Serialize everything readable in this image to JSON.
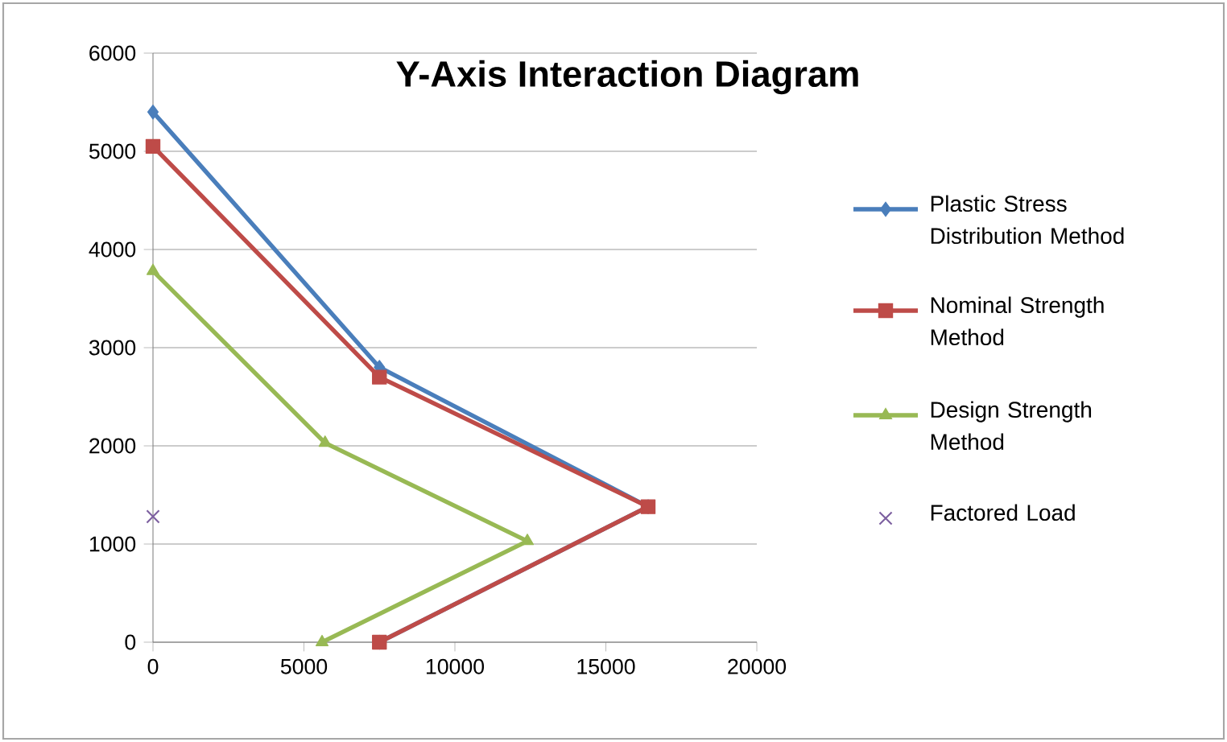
{
  "chart_data": {
    "type": "line",
    "title": "Y-Axis Interaction Diagram",
    "xlim": [
      0,
      20000
    ],
    "xticks": [
      0,
      5000,
      10000,
      15000,
      20000
    ],
    "ylim": [
      0,
      6000
    ],
    "yticks": [
      0,
      1000,
      2000,
      3000,
      4000,
      5000,
      6000
    ],
    "grid": "y",
    "legend": "right",
    "series": [
      {
        "name": "Plastic Stress Distribution Method",
        "color": "#4a7ebb",
        "marker": "diamond",
        "line_style": "solid",
        "x": [
          0,
          7500,
          16400,
          7500
        ],
        "values": [
          5400,
          2800,
          1380,
          0
        ]
      },
      {
        "name": "Nominal Strength Method",
        "color": "#be4b48",
        "marker": "square",
        "line_style": "solid",
        "x": [
          0,
          7500,
          16400,
          7500
        ],
        "values": [
          5050,
          2700,
          1380,
          0
        ]
      },
      {
        "name": "Design Strength Method",
        "color": "#98b954",
        "marker": "triangle",
        "line_style": "solid",
        "x": [
          0,
          5700,
          12400,
          5600
        ],
        "values": [
          3780,
          2030,
          1030,
          0
        ]
      },
      {
        "name": "Factored Load",
        "type": "scatter",
        "color": "#7d60a0",
        "marker": "cross",
        "x": [
          0
        ],
        "values": [
          1280
        ]
      }
    ]
  }
}
